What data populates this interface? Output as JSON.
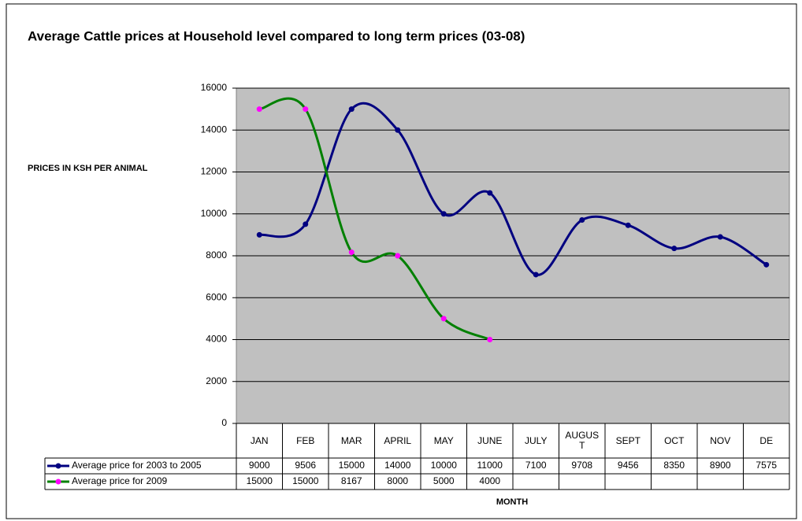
{
  "chart_data": {
    "type": "line",
    "title": "Average Cattle prices at Household level compared to long term prices (03-08)",
    "ylabel": "PRICES IN KSH PER ANIMAL",
    "xlabel": "MONTH",
    "categories": [
      "JAN",
      "FEB",
      "MAR",
      "APRIL",
      "MAY",
      "JUNE",
      "JULY",
      "AUGUST",
      "SEPT",
      "OCT",
      "NOV",
      "DE"
    ],
    "series": [
      {
        "name": "Average price for 2003 to 2005",
        "color": "#000080",
        "marker_color": "#000080",
        "values": [
          9000,
          9506,
          15000,
          14000,
          10000,
          11000,
          7100,
          9708,
          9456,
          8350,
          8900,
          7575
        ]
      },
      {
        "name": "Average price for 2009",
        "color": "#008000",
        "marker_color": "#ff00ff",
        "values": [
          15000,
          15000,
          8167,
          8000,
          5000,
          4000,
          null,
          null,
          null,
          null,
          null,
          null
        ]
      }
    ],
    "ylim": [
      0,
      16000
    ],
    "yticks": [
      0,
      2000,
      4000,
      6000,
      8000,
      10000,
      12000,
      14000,
      16000
    ],
    "grid": true,
    "smooth": true,
    "plot_background": "#c0c0c0"
  }
}
